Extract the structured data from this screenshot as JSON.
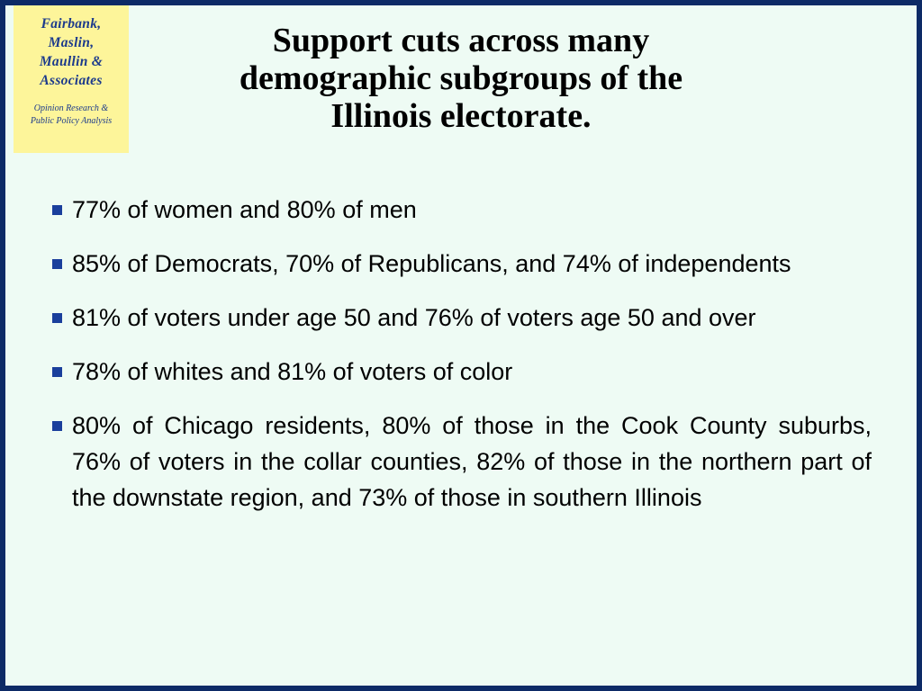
{
  "logo": {
    "name_lines": [
      "Fairbank,",
      "Maslin,",
      "Maullin &",
      "Associates"
    ],
    "tagline_lines": [
      "Opinion Research &",
      "Public Policy Analysis"
    ]
  },
  "slide": {
    "title_lines": [
      "Support cuts across many",
      "demographic subgroups of the",
      "Illinois electorate."
    ],
    "bullets": [
      "77% of women and 80% of men",
      "85% of Democrats, 70% of Republicans, and 74% of independents",
      "81% of voters under age 50 and 76% of voters age 50 and over",
      "78% of whites and 81% of voters of color",
      "80% of Chicago residents, 80% of those in the Cook County suburbs, 76% of voters in the collar counties, 82% of those in the northern part of the downstate region, and 73% of those in southern Illinois"
    ]
  },
  "colors": {
    "frame": "#0d2a66",
    "background": "#eefbf4",
    "logo_bg": "#fdf59a",
    "logo_text": "#1c3a8c",
    "bullet_marker": "#1a3f9c"
  }
}
